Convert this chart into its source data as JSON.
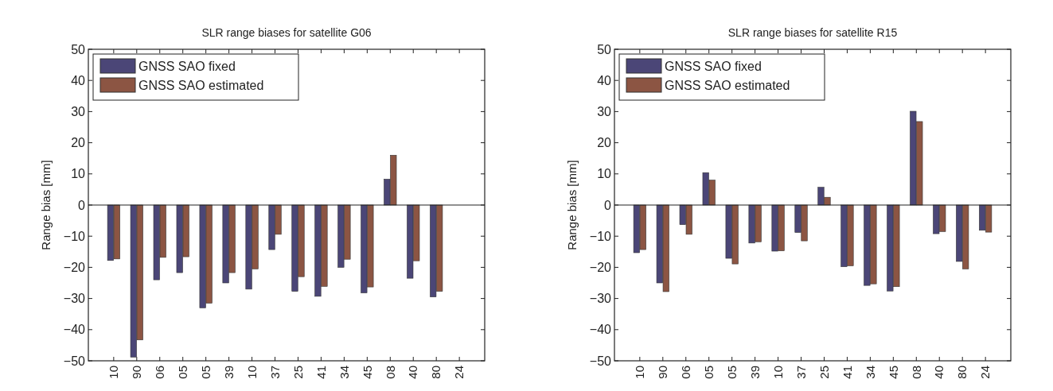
{
  "chart_data": [
    {
      "type": "bar",
      "title": "SLR range biases for satellite G06",
      "ylabel": "Range bias [mm]",
      "categories": [
        "10",
        "90",
        "06",
        "05",
        "05",
        "39",
        "10",
        "37",
        "25",
        "41",
        "34",
        "45",
        "08",
        "40",
        "80",
        "24"
      ],
      "series": [
        {
          "name": "GNSS SAO fixed",
          "color": "#4b4677",
          "values": [
            -17.8,
            -48.8,
            -24,
            -21.7,
            -33,
            -25,
            -27,
            -14.3,
            -27.7,
            -29.3,
            -20,
            -28.2,
            8.3,
            -23.5,
            -29.5,
            null
          ]
        },
        {
          "name": "GNSS SAO estimated",
          "color": "#8c5543",
          "values": [
            -17.3,
            -43.3,
            -16.8,
            -16.6,
            -31.5,
            -21.7,
            -20.5,
            -9.4,
            -23,
            -26.1,
            -17.4,
            -26.3,
            16,
            -17.9,
            -27.7,
            null
          ]
        }
      ],
      "ylim": [
        -50,
        50
      ],
      "yticks": [
        -50,
        -40,
        -30,
        -20,
        -10,
        0,
        10,
        20,
        30,
        40,
        50
      ],
      "legend": "top left"
    },
    {
      "type": "bar",
      "title": "SLR range biases for satellite R15",
      "ylabel": "Range bias [mm]",
      "categories": [
        "10",
        "90",
        "06",
        "05",
        "05",
        "39",
        "10",
        "37",
        "25",
        "41",
        "34",
        "45",
        "08",
        "40",
        "80",
        "24"
      ],
      "series": [
        {
          "name": "GNSS SAO fixed",
          "color": "#4b4677",
          "values": [
            -15.3,
            -25,
            -6.3,
            10.4,
            -17.1,
            -12.2,
            -14.8,
            -8.8,
            5.7,
            -19.8,
            -25.8,
            -27.6,
            30.1,
            -9.2,
            -18.1,
            -8.1
          ]
        },
        {
          "name": "GNSS SAO estimated",
          "color": "#8c5543",
          "values": [
            -14.3,
            -27.8,
            -9.4,
            8,
            -18.9,
            -11.8,
            -14.7,
            -11.5,
            2.5,
            -19.5,
            -25.3,
            -26.2,
            26.8,
            -8.5,
            -20.5,
            -8.7
          ]
        }
      ],
      "ylim": [
        -50,
        50
      ],
      "yticks": [
        -50,
        -40,
        -30,
        -20,
        -10,
        0,
        10,
        20,
        30,
        40,
        50
      ],
      "legend": "top left"
    }
  ]
}
